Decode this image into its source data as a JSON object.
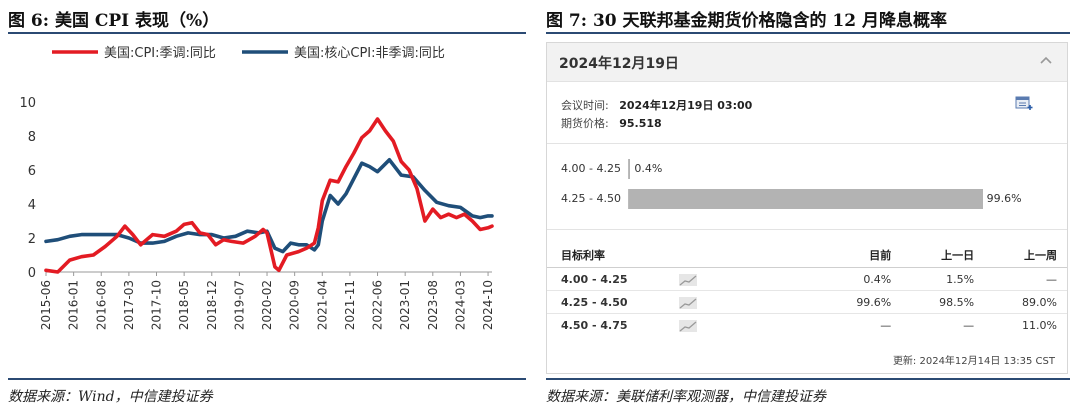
{
  "fig6": {
    "title": "图 6: 美国 CPI 表现（%）",
    "source": "数据来源：Wind，中信建投证券"
  },
  "fig7": {
    "title": "图 7: 30 天联邦基金期货价格隐含的 12 月降息概率",
    "source": "数据来源：美联储利率观测器，中信建投证券",
    "panel": {
      "date": "2024年12月19日",
      "meeting_time_label": "会议时间:",
      "meeting_time": "2024年12月19日 03:00",
      "futures_price_label": "期货价格:",
      "futures_price": "95.518",
      "probabilities": [
        {
          "range": "4.00 - 4.25",
          "prob": 0.4,
          "label": "0.4%"
        },
        {
          "range": "4.25 - 4.50",
          "prob": 99.6,
          "label": "99.6%"
        }
      ],
      "table": {
        "headers": [
          "目标利率",
          "目前",
          "上一日",
          "上一周"
        ],
        "rows": [
          {
            "rate": "4.00 - 4.25",
            "current": "0.4%",
            "prev_day": "1.5%",
            "prev_week": "—"
          },
          {
            "rate": "4.25 - 4.50",
            "current": "99.6%",
            "prev_day": "98.5%",
            "prev_week": "89.0%"
          },
          {
            "rate": "4.50 - 4.75",
            "current": "—",
            "prev_day": "—",
            "prev_week": "11.0%"
          }
        ]
      },
      "updated": "更新: 2024年12月14日 13:35 CST"
    }
  },
  "chart_data": {
    "type": "line",
    "title": "美国 CPI 表现（%）",
    "ylim": [
      0,
      10
    ],
    "yticks": [
      0,
      2,
      4,
      6,
      8,
      10
    ],
    "xticks": [
      "2015-06",
      "2016-01",
      "2016-08",
      "2017-03",
      "2017-10",
      "2018-05",
      "2018-12",
      "2019-07",
      "2020-02",
      "2020-09",
      "2021-04",
      "2021-11",
      "2022-06",
      "2023-01",
      "2023-08",
      "2024-03",
      "2024-10"
    ],
    "x_start": "2015-06",
    "x_end": "2024-11",
    "legend_position": "top",
    "series": [
      {
        "name": "美国:CPI:季调:同比",
        "color": "#e31b23",
        "points": [
          [
            "2015-06",
            0.1
          ],
          [
            "2015-09",
            0.0
          ],
          [
            "2015-12",
            0.7
          ],
          [
            "2016-03",
            0.9
          ],
          [
            "2016-06",
            1.0
          ],
          [
            "2016-09",
            1.5
          ],
          [
            "2016-12",
            2.1
          ],
          [
            "2017-02",
            2.7
          ],
          [
            "2017-04",
            2.2
          ],
          [
            "2017-06",
            1.6
          ],
          [
            "2017-09",
            2.2
          ],
          [
            "2017-12",
            2.1
          ],
          [
            "2018-03",
            2.4
          ],
          [
            "2018-05",
            2.8
          ],
          [
            "2018-07",
            2.9
          ],
          [
            "2018-09",
            2.3
          ],
          [
            "2018-11",
            2.2
          ],
          [
            "2019-01",
            1.6
          ],
          [
            "2019-03",
            1.9
          ],
          [
            "2019-05",
            1.8
          ],
          [
            "2019-08",
            1.7
          ],
          [
            "2019-11",
            2.1
          ],
          [
            "2020-01",
            2.5
          ],
          [
            "2020-02",
            2.3
          ],
          [
            "2020-04",
            0.3
          ],
          [
            "2020-05",
            0.1
          ],
          [
            "2020-07",
            1.0
          ],
          [
            "2020-10",
            1.2
          ],
          [
            "2020-12",
            1.4
          ],
          [
            "2021-02",
            1.7
          ],
          [
            "2021-03",
            2.6
          ],
          [
            "2021-04",
            4.2
          ],
          [
            "2021-06",
            5.4
          ],
          [
            "2021-08",
            5.3
          ],
          [
            "2021-10",
            6.2
          ],
          [
            "2021-12",
            7.0
          ],
          [
            "2022-02",
            7.9
          ],
          [
            "2022-04",
            8.3
          ],
          [
            "2022-06",
            9.0
          ],
          [
            "2022-08",
            8.3
          ],
          [
            "2022-10",
            7.7
          ],
          [
            "2022-12",
            6.5
          ],
          [
            "2023-02",
            6.0
          ],
          [
            "2023-04",
            4.9
          ],
          [
            "2023-06",
            3.0
          ],
          [
            "2023-08",
            3.7
          ],
          [
            "2023-10",
            3.2
          ],
          [
            "2023-12",
            3.4
          ],
          [
            "2024-02",
            3.2
          ],
          [
            "2024-04",
            3.4
          ],
          [
            "2024-06",
            3.0
          ],
          [
            "2024-08",
            2.5
          ],
          [
            "2024-10",
            2.6
          ],
          [
            "2024-11",
            2.7
          ]
        ]
      },
      {
        "name": "美国:核心CPI:非季调:同比",
        "color": "#1f4e79",
        "points": [
          [
            "2015-06",
            1.8
          ],
          [
            "2015-09",
            1.9
          ],
          [
            "2015-12",
            2.1
          ],
          [
            "2016-03",
            2.2
          ],
          [
            "2016-06",
            2.2
          ],
          [
            "2016-09",
            2.2
          ],
          [
            "2016-12",
            2.2
          ],
          [
            "2017-03",
            2.0
          ],
          [
            "2017-06",
            1.7
          ],
          [
            "2017-09",
            1.7
          ],
          [
            "2017-12",
            1.8
          ],
          [
            "2018-03",
            2.1
          ],
          [
            "2018-06",
            2.3
          ],
          [
            "2018-09",
            2.2
          ],
          [
            "2018-12",
            2.2
          ],
          [
            "2019-03",
            2.0
          ],
          [
            "2019-06",
            2.1
          ],
          [
            "2019-09",
            2.4
          ],
          [
            "2019-12",
            2.3
          ],
          [
            "2020-02",
            2.4
          ],
          [
            "2020-04",
            1.4
          ],
          [
            "2020-06",
            1.2
          ],
          [
            "2020-08",
            1.7
          ],
          [
            "2020-10",
            1.6
          ],
          [
            "2020-12",
            1.6
          ],
          [
            "2021-02",
            1.3
          ],
          [
            "2021-03",
            1.6
          ],
          [
            "2021-04",
            3.0
          ],
          [
            "2021-06",
            4.5
          ],
          [
            "2021-08",
            4.0
          ],
          [
            "2021-10",
            4.6
          ],
          [
            "2021-12",
            5.5
          ],
          [
            "2022-02",
            6.4
          ],
          [
            "2022-04",
            6.2
          ],
          [
            "2022-06",
            5.9
          ],
          [
            "2022-09",
            6.6
          ],
          [
            "2022-12",
            5.7
          ],
          [
            "2023-03",
            5.6
          ],
          [
            "2023-06",
            4.8
          ],
          [
            "2023-09",
            4.1
          ],
          [
            "2023-12",
            3.9
          ],
          [
            "2024-03",
            3.8
          ],
          [
            "2024-06",
            3.3
          ],
          [
            "2024-08",
            3.2
          ],
          [
            "2024-10",
            3.3
          ],
          [
            "2024-11",
            3.3
          ]
        ]
      }
    ]
  }
}
